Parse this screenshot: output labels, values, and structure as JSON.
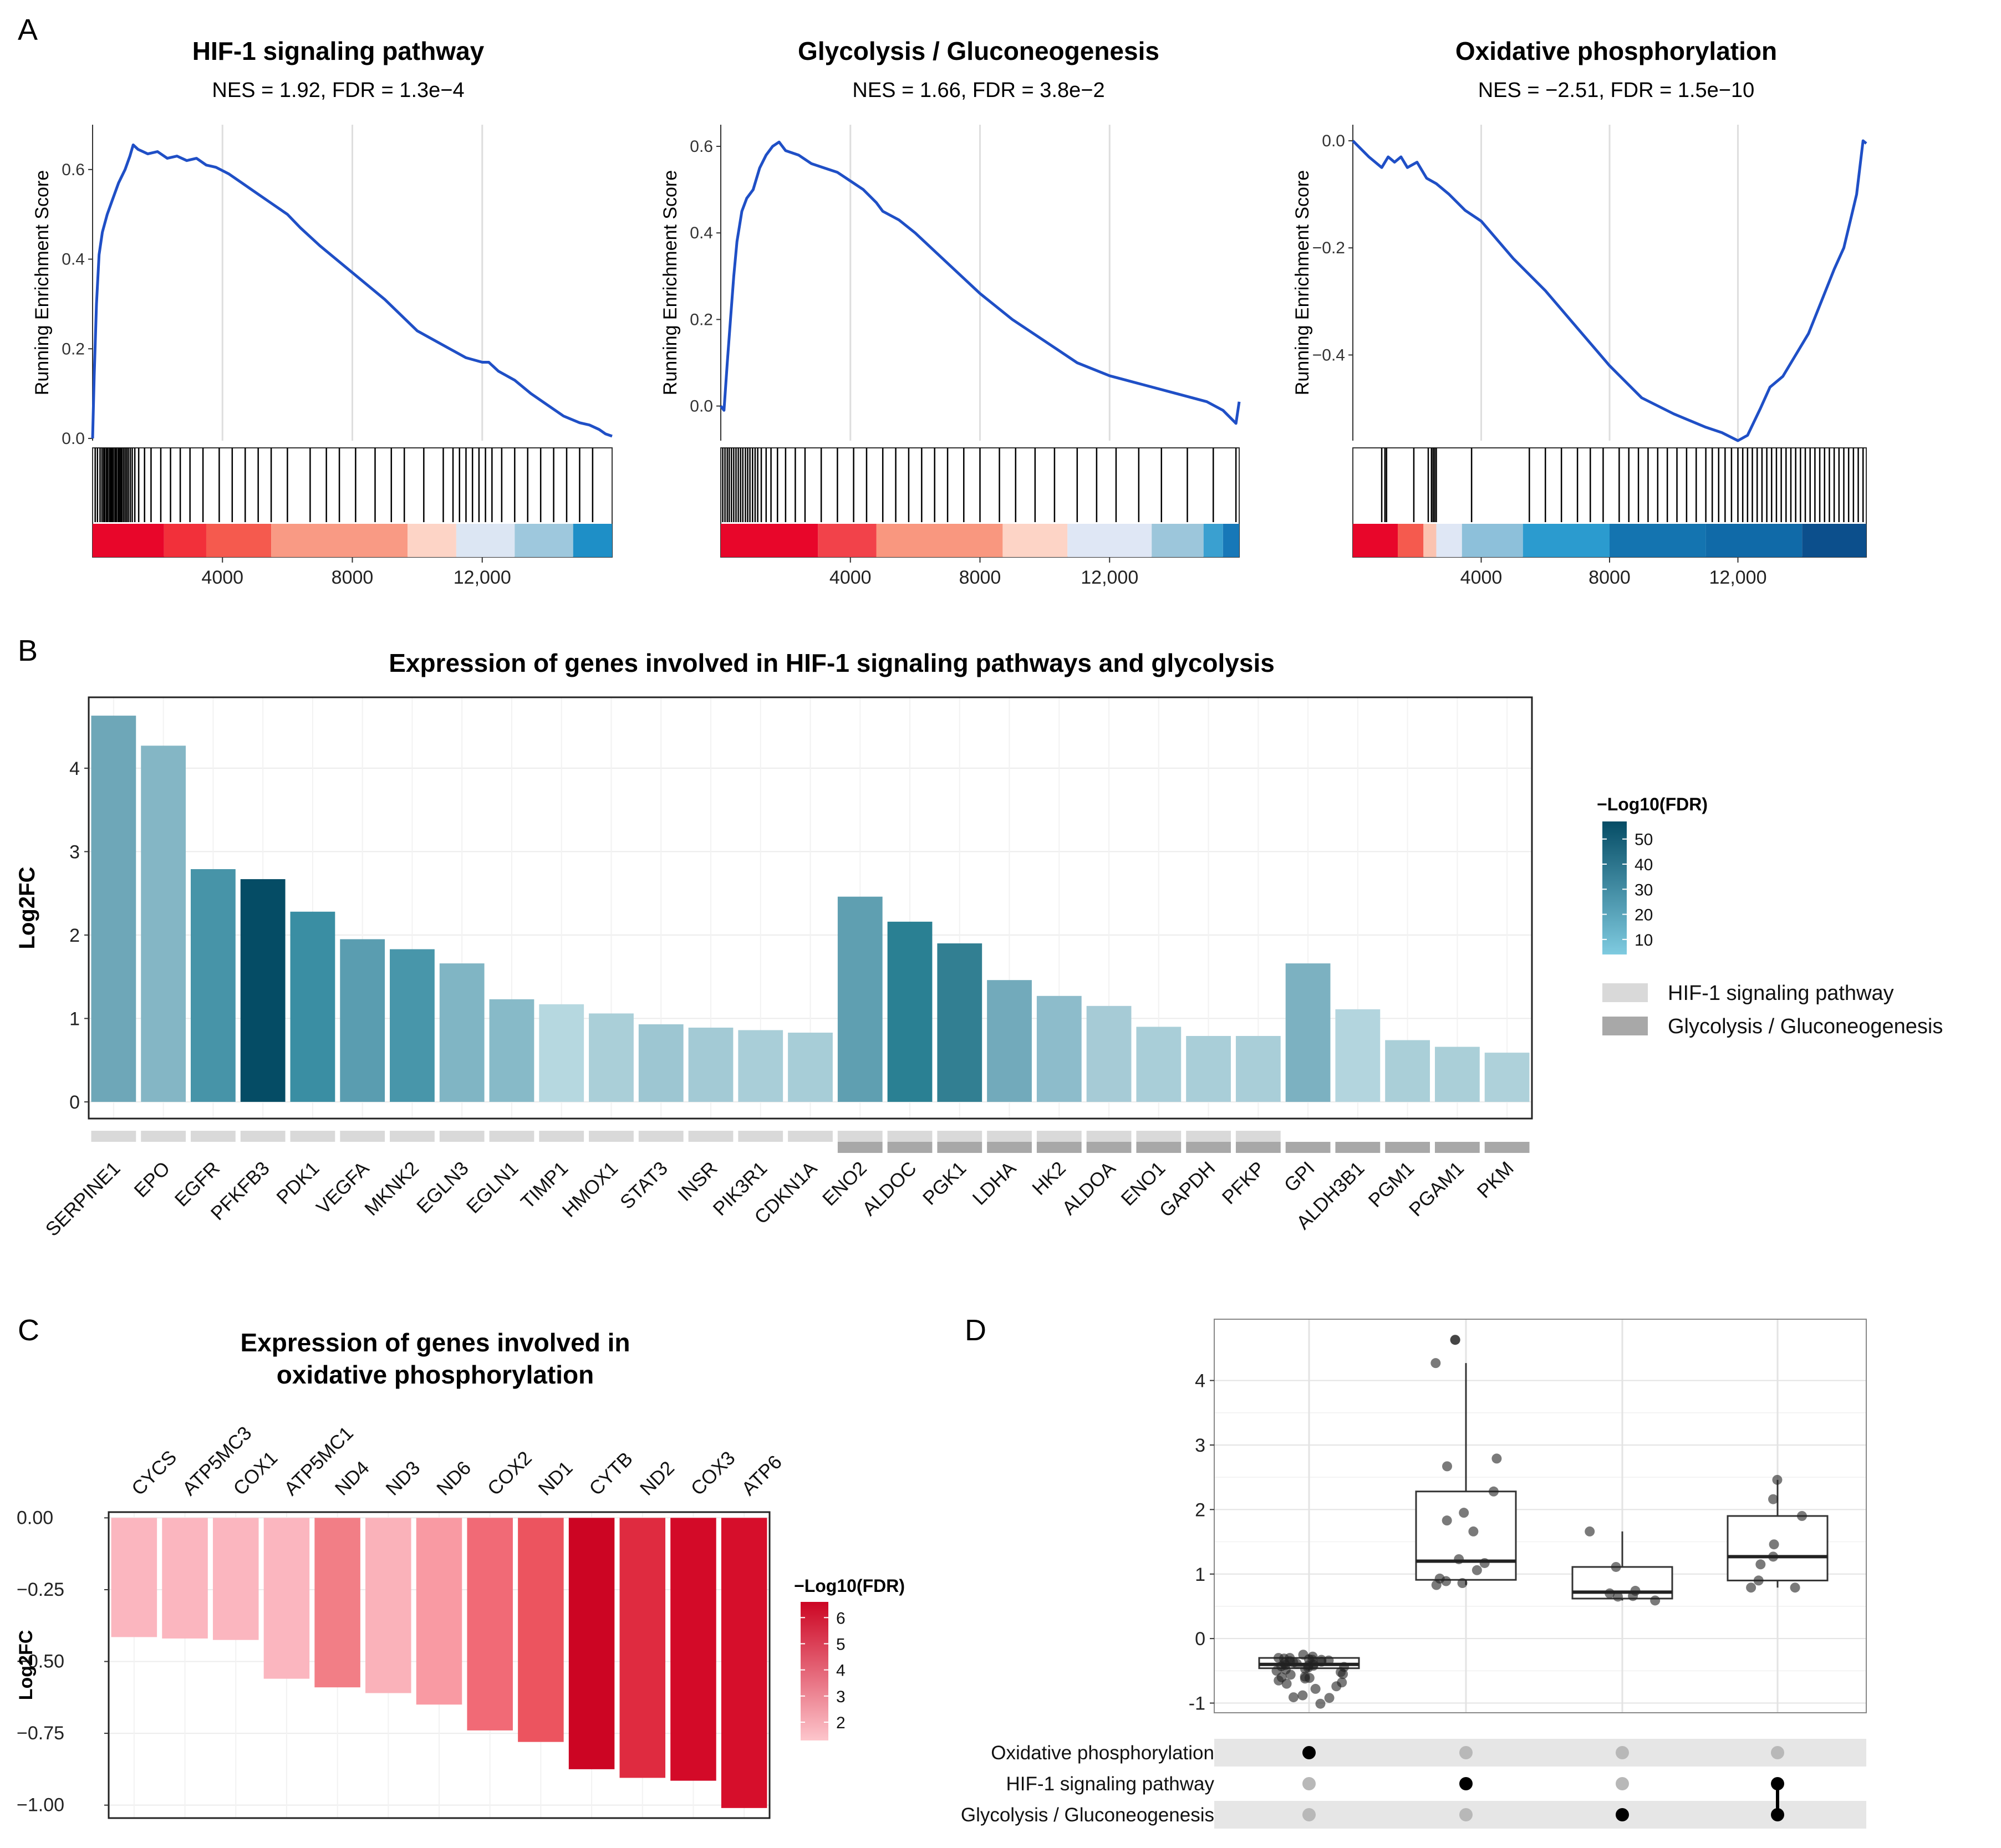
{
  "panels": {
    "a": {
      "letter": "A"
    },
    "b": {
      "letter": "B"
    },
    "c": {
      "letter": "C"
    },
    "d": {
      "letter": "D"
    }
  },
  "chart_data": [
    {
      "id": "A1",
      "type": "line",
      "title": "HIF-1 signaling pathway",
      "subtitle": "NES = 1.92, FDR = 1.3e−4",
      "ylabel": "Running Enrichment Score",
      "ylim": [
        -0.005,
        0.7
      ],
      "yticks": [
        0.0,
        0.2,
        0.4,
        0.6
      ],
      "ytick_labels": [
        "0.0",
        "0.2",
        "0.4",
        "0.6"
      ],
      "xlim": [
        0,
        16000
      ],
      "xticks": [
        4000,
        8000,
        12000
      ],
      "xtick_labels": [
        "4000",
        "8000",
        "12,000"
      ],
      "x": [
        0,
        50,
        120,
        200,
        300,
        450,
        600,
        800,
        1000,
        1150,
        1250,
        1400,
        1700,
        2000,
        2300,
        2600,
        2900,
        3200,
        3500,
        3800,
        4200,
        4600,
        5000,
        5500,
        6000,
        6400,
        7000,
        8000,
        9000,
        10000,
        11000,
        11500,
        12000,
        12200,
        12500,
        13000,
        13500,
        14000,
        14500,
        15000,
        15300,
        15600,
        15800,
        16000
      ],
      "y": [
        0.0,
        0.14,
        0.3,
        0.41,
        0.46,
        0.5,
        0.53,
        0.57,
        0.6,
        0.63,
        0.655,
        0.645,
        0.635,
        0.64,
        0.625,
        0.63,
        0.62,
        0.625,
        0.61,
        0.605,
        0.59,
        0.57,
        0.55,
        0.525,
        0.5,
        0.47,
        0.43,
        0.37,
        0.31,
        0.24,
        0.2,
        0.18,
        0.17,
        0.17,
        0.15,
        0.13,
        0.1,
        0.075,
        0.05,
        0.035,
        0.03,
        0.02,
        0.01,
        0.005
      ],
      "hits": [
        80,
        150,
        230,
        290,
        340,
        380,
        430,
        470,
        520,
        560,
        600,
        640,
        690,
        730,
        780,
        820,
        860,
        900,
        950,
        1000,
        1050,
        1100,
        1160,
        1220,
        1300,
        1420,
        1600,
        1800,
        2100,
        2400,
        2700,
        3000,
        3400,
        3900,
        4300,
        4700,
        5100,
        5500,
        6000,
        6700,
        7200,
        7600,
        8100,
        8700,
        9200,
        9600,
        10200,
        10800,
        11100,
        11300,
        11500,
        11700,
        11900,
        12100,
        12300,
        12600,
        13000,
        13400,
        13800,
        14200,
        14600,
        15000,
        15400
      ],
      "color_bands": [
        [
          0,
          2200,
          "#e8062a"
        ],
        [
          2200,
          3500,
          "#f2303a"
        ],
        [
          3500,
          5500,
          "#f55a4e"
        ],
        [
          5500,
          9700,
          "#f99a84"
        ],
        [
          9700,
          11200,
          "#fdd4c6"
        ],
        [
          11200,
          13000,
          "#dce6f3"
        ],
        [
          13000,
          14800,
          "#9ec8dd"
        ],
        [
          14800,
          16000,
          "#1e8fc7"
        ]
      ]
    },
    {
      "id": "A2",
      "type": "line",
      "title": "Glycolysis / Gluconeogenesis",
      "subtitle": "NES = 1.66, FDR = 3.8e−2",
      "ylabel": "Running Enrichment Score",
      "ylim": [
        -0.08,
        0.65
      ],
      "yticks": [
        0.0,
        0.2,
        0.4,
        0.6
      ],
      "ytick_labels": [
        "0.0",
        "0.2",
        "0.4",
        "0.6"
      ],
      "xlim": [
        0,
        16000
      ],
      "xticks": [
        4000,
        8000,
        12000
      ],
      "xtick_labels": [
        "4000",
        "8000",
        "12,000"
      ],
      "x": [
        0,
        100,
        200,
        300,
        400,
        500,
        650,
        800,
        1000,
        1200,
        1400,
        1600,
        1800,
        2000,
        2400,
        2800,
        3200,
        3600,
        4000,
        4400,
        4800,
        5000,
        5500,
        6000,
        7000,
        8000,
        9000,
        10000,
        11000,
        12000,
        13000,
        14000,
        15000,
        15500,
        15900,
        16000
      ],
      "y": [
        0.0,
        -0.01,
        0.1,
        0.2,
        0.3,
        0.38,
        0.45,
        0.48,
        0.5,
        0.55,
        0.58,
        0.6,
        0.61,
        0.59,
        0.58,
        0.56,
        0.55,
        0.54,
        0.52,
        0.5,
        0.47,
        0.45,
        0.43,
        0.4,
        0.33,
        0.26,
        0.2,
        0.15,
        0.1,
        0.07,
        0.05,
        0.03,
        0.01,
        -0.01,
        -0.04,
        0.01
      ],
      "hits": [
        60,
        130,
        200,
        260,
        330,
        400,
        470,
        540,
        610,
        680,
        760,
        830,
        900,
        980,
        1060,
        1140,
        1250,
        1400,
        1550,
        1750,
        2000,
        2300,
        2600,
        3100,
        3600,
        4100,
        4500,
        5000,
        5400,
        5800,
        6200,
        6600,
        7000,
        7500,
        8000,
        8600,
        9100,
        9700,
        10300,
        11000,
        11600,
        12200,
        12900,
        13600,
        14400,
        15200,
        15900
      ],
      "color_bands": [
        [
          0,
          3000,
          "#e8062a"
        ],
        [
          3000,
          4800,
          "#f2424a"
        ],
        [
          4800,
          8700,
          "#f9977f"
        ],
        [
          8700,
          10700,
          "#fdd4c6"
        ],
        [
          10700,
          13300,
          "#dfe7f5"
        ],
        [
          13300,
          14900,
          "#9cc6db"
        ],
        [
          14900,
          15500,
          "#3aa0d0"
        ],
        [
          15500,
          16000,
          "#1778b8"
        ]
      ]
    },
    {
      "id": "A3",
      "type": "line",
      "title": "Oxidative phosphorylation",
      "subtitle": "NES = −2.51, FDR = 1.5e−10",
      "ylabel": "Running Enrichment Score",
      "ylim": [
        -0.56,
        0.03
      ],
      "yticks": [
        0.0,
        -0.2,
        -0.4
      ],
      "ytick_labels": [
        "0.0",
        "−0.2",
        "−0.4"
      ],
      "xlim": [
        0,
        16000
      ],
      "xticks": [
        4000,
        8000,
        12000
      ],
      "xtick_labels": [
        "4000",
        "8000",
        "12,000"
      ],
      "x": [
        0,
        500,
        900,
        1100,
        1300,
        1500,
        1700,
        2000,
        2300,
        2600,
        3000,
        3500,
        4000,
        5000,
        6000,
        7000,
        8000,
        9000,
        10000,
        11000,
        11500,
        12000,
        12300,
        12700,
        13000,
        13400,
        13800,
        14200,
        14600,
        15000,
        15300,
        15500,
        15700,
        15800,
        15900,
        16000
      ],
      "y": [
        0.0,
        -0.03,
        -0.05,
        -0.03,
        -0.04,
        -0.03,
        -0.05,
        -0.04,
        -0.07,
        -0.08,
        -0.1,
        -0.13,
        -0.15,
        -0.22,
        -0.28,
        -0.35,
        -0.42,
        -0.48,
        -0.51,
        -0.535,
        -0.545,
        -0.56,
        -0.55,
        -0.5,
        -0.46,
        -0.44,
        -0.4,
        -0.36,
        -0.3,
        -0.24,
        -0.2,
        -0.15,
        -0.1,
        -0.05,
        0.0,
        -0.005
      ],
      "hits": [
        900,
        1000,
        1050,
        1900,
        2350,
        2450,
        2500,
        2550,
        2600,
        3700,
        5500,
        6000,
        6500,
        7000,
        7400,
        7800,
        8300,
        8600,
        8900,
        9200,
        9500,
        9800,
        10100,
        10400,
        10700,
        11000,
        11200,
        11400,
        11600,
        11800,
        12000,
        12150,
        12300,
        12450,
        12600,
        12750,
        12900,
        13050,
        13200,
        13350,
        13500,
        13650,
        13800,
        13950,
        14100,
        14250,
        14400,
        14550,
        14700,
        14850,
        15000,
        15150,
        15300,
        15450,
        15600,
        15750,
        15900
      ],
      "color_bands": [
        [
          0,
          1400,
          "#e8062a"
        ],
        [
          1400,
          2200,
          "#f55a4e"
        ],
        [
          2200,
          2600,
          "#fbc3b0"
        ],
        [
          2600,
          3400,
          "#dfe7f5"
        ],
        [
          3400,
          5300,
          "#8dc0da"
        ],
        [
          5300,
          8000,
          "#2b9bcf"
        ],
        [
          8000,
          11000,
          "#1474b0"
        ],
        [
          11000,
          14000,
          "#106aa8"
        ],
        [
          14000,
          16000,
          "#0c4f8c"
        ]
      ]
    },
    {
      "id": "B",
      "type": "bar",
      "title": "Expression of genes involved in HIF-1 signaling pathways and glycolysis",
      "ylabel": "Log2FC",
      "xlabel": "",
      "ylim": [
        -0.2,
        4.85
      ],
      "yticks": [
        0,
        1,
        2,
        3,
        4
      ],
      "categories": [
        "SERPINE1",
        "EPO",
        "EGFR",
        "PFKFB3",
        "PDK1",
        "VEGFA",
        "MKNK2",
        "EGLN3",
        "EGLN1",
        "TIMP1",
        "HMOX1",
        "STAT3",
        "INSR",
        "PIK3R1",
        "CDKN1A",
        "ENO2",
        "ALDOC",
        "PGK1",
        "LDHA",
        "HK2",
        "ALDOA",
        "ENO1",
        "GAPDH",
        "PFKP",
        "GPI",
        "ALDH3B1",
        "PGM1",
        "PGAM1",
        "PKM"
      ],
      "values": [
        4.63,
        4.27,
        2.79,
        2.67,
        2.28,
        1.95,
        1.83,
        1.66,
        1.23,
        1.17,
        1.06,
        0.93,
        0.89,
        0.86,
        0.83,
        2.46,
        2.16,
        1.9,
        1.46,
        1.27,
        1.15,
        0.9,
        0.79,
        0.79,
        1.66,
        1.11,
        0.74,
        0.66,
        0.59
      ],
      "fill": [
        "#6ea7b8",
        "#84b6c5",
        "#4794a8",
        "#054c65",
        "#3a8ea3",
        "#5a9db0",
        "#4896aa",
        "#80b5c4",
        "#87bac8",
        "#b6d8e0",
        "#aacfd8",
        "#9dc6d2",
        "#a3cad5",
        "#a9ced8",
        "#a7cdd7",
        "#5f9fb1",
        "#2a8093",
        "#327f92",
        "#72aabb",
        "#8dbccb",
        "#a6cbd6",
        "#a9ced8",
        "#a9ced8",
        "#a9ced8",
        "#7cb1c1",
        "#b3d5de",
        "#aacfd8",
        "#aacfd8",
        "#aed1da"
      ],
      "membership": [
        "HIF-1 signaling pathway",
        "HIF-1 signaling pathway",
        "HIF-1 signaling pathway",
        "HIF-1 signaling pathway",
        "HIF-1 signaling pathway",
        "HIF-1 signaling pathway",
        "HIF-1 signaling pathway",
        "HIF-1 signaling pathway",
        "HIF-1 signaling pathway",
        "HIF-1 signaling pathway",
        "HIF-1 signaling pathway",
        "HIF-1 signaling pathway",
        "HIF-1 signaling pathway",
        "HIF-1 signaling pathway",
        "HIF-1 signaling pathway",
        "Both",
        "Both",
        "Both",
        "Both",
        "Both",
        "Both",
        "Both",
        "Both",
        "Both",
        "Glycolysis / Gluconeogenesis",
        "Glycolysis / Gluconeogenesis",
        "Glycolysis / Gluconeogenesis",
        "Glycolysis / Gluconeogenesis",
        "Glycolysis / Gluconeogenesis"
      ],
      "legend_title": "−Log10(FDR)",
      "legend_ticks": [
        50,
        40,
        30,
        20,
        10
      ],
      "legend_range": [
        4,
        57
      ],
      "legend_colors": [
        "#054c65",
        "#7fcbe0"
      ],
      "group_legend": [
        {
          "label": "HIF-1 signaling pathway",
          "color": "#d9d9d9"
        },
        {
          "label": "Glycolysis / Gluconeogenesis",
          "color": "#a8a8a8"
        }
      ]
    },
    {
      "id": "C",
      "type": "bar",
      "title": "Expression of genes involved in",
      "title2": "oxidative phosphorylation",
      "ylabel": "Log2FC",
      "ylim": [
        -1.045,
        0.02
      ],
      "yticks": [
        0.0,
        -0.25,
        -0.5,
        -0.75,
        -1.0
      ],
      "ytick_labels": [
        "0.00",
        "−0.25",
        "−0.50",
        "−0.75",
        "−1.00"
      ],
      "categories": [
        "CYCS",
        "ATP5MC3",
        "COX1",
        "ATP5MC1",
        "ND4",
        "ND3",
        "ND6",
        "COX2",
        "ND1",
        "CYTB",
        "ND2",
        "COX3",
        "ATP6"
      ],
      "values": [
        -0.415,
        -0.42,
        -0.425,
        -0.56,
        -0.59,
        -0.61,
        -0.65,
        -0.74,
        -0.78,
        -0.875,
        -0.905,
        -0.915,
        -1.01
      ],
      "fill": [
        "#fbb6bf",
        "#fbb6bf",
        "#fbb6bf",
        "#fbb6bf",
        "#f27e86",
        "#fab2ba",
        "#f99aa3",
        "#f16a76",
        "#ec545f",
        "#cc0523",
        "#df2b40",
        "#d30a28",
        "#d60e2b"
      ],
      "legend_title": "−Log10(FDR)",
      "legend_ticks": [
        6,
        5,
        4,
        3,
        2
      ],
      "legend_range": [
        1.3,
        6.6
      ],
      "legend_colors": [
        "#cc0523",
        "#fdc6cc"
      ]
    },
    {
      "id": "D",
      "type": "scatter",
      "subtype": "boxplot with jitter and upset matrix",
      "ylim": [
        -1.15,
        4.95
      ],
      "yticks": [
        -1,
        0,
        1,
        2,
        3,
        4
      ],
      "sets": [
        "Oxidative phosphorylation",
        "HIF-1 signaling pathway",
        "Glycolysis / Gluconeogenesis"
      ],
      "groups": [
        {
          "members": [
            true,
            false,
            false
          ],
          "box": {
            "min": -0.5,
            "q1": -0.46,
            "median": -0.4,
            "q3": -0.3,
            "max": -0.25
          },
          "points": [
            -0.42,
            -0.42,
            -0.43,
            -0.56,
            -0.59,
            -0.61,
            -0.65,
            -0.74,
            -0.78,
            -0.88,
            -0.91,
            -0.92,
            -1.01,
            -0.3,
            -0.32,
            -0.35,
            -0.36,
            -0.38,
            -0.4,
            -0.45,
            -0.48,
            -0.5,
            -0.52,
            -0.55,
            -0.6,
            -0.62,
            -0.68,
            -0.7,
            -0.25,
            -0.28,
            -0.33,
            -0.37,
            -0.41,
            -0.44,
            -0.47,
            -0.3,
            -0.33,
            -0.39,
            -0.31,
            -0.34
          ]
        },
        {
          "members": [
            false,
            true,
            false
          ],
          "box": {
            "min": 0.83,
            "q1": 0.91,
            "median": 1.2,
            "q3": 2.28,
            "max": 4.27
          },
          "points": [
            4.63,
            4.63,
            4.27,
            2.79,
            2.67,
            2.28,
            1.95,
            1.83,
            1.66,
            1.23,
            1.17,
            1.06,
            0.93,
            0.89,
            0.86,
            0.83
          ]
        },
        {
          "members": [
            false,
            false,
            true
          ],
          "box": {
            "min": 0.59,
            "q1": 0.62,
            "median": 0.72,
            "q3": 1.11,
            "max": 1.66
          },
          "points": [
            1.66,
            1.11,
            0.74,
            0.66,
            0.59,
            0.7,
            0.65
          ]
        },
        {
          "members": [
            false,
            true,
            true
          ],
          "box": {
            "min": 0.79,
            "q1": 0.9,
            "median": 1.27,
            "q3": 1.9,
            "max": 2.46
          },
          "points": [
            2.46,
            2.16,
            1.9,
            1.46,
            1.27,
            1.15,
            0.9,
            0.79,
            0.79
          ]
        }
      ]
    }
  ]
}
